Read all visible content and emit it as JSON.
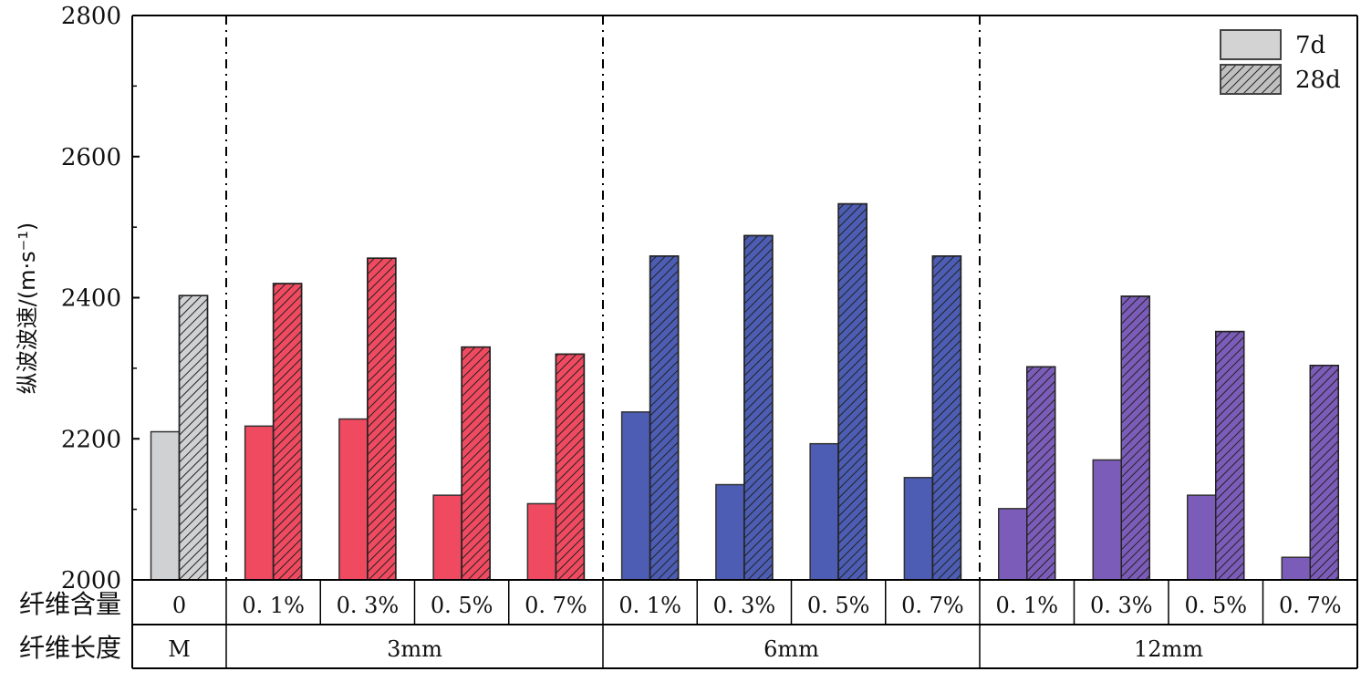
{
  "chart_data": {
    "type": "bar",
    "ylabel": "纵波波速/(m·s⁻¹)",
    "ylim": [
      2000,
      2800
    ],
    "yticks": [
      "2000",
      "2200",
      "2400",
      "2600",
      "2800"
    ],
    "categories": [
      "0",
      "0.1%",
      "0.3%",
      "0.5%",
      "0.7%",
      "0.1%",
      "0.3%",
      "0.5%",
      "0.7%",
      "0.1%",
      "0.3%",
      "0.5%",
      "0.7%"
    ],
    "category_display": [
      "0",
      "0. 1%",
      "0. 3%",
      "0. 5%",
      "0. 7%",
      "0. 1%",
      "0. 3%",
      "0. 5%",
      "0. 7%",
      "0. 1%",
      "0. 3%",
      "0. 5%",
      "0. 7%"
    ],
    "series": [
      {
        "name": "7d",
        "values": [
          2210,
          2218,
          2228,
          2120,
          2108,
          2238,
          2135,
          2193,
          2145,
          2101,
          2170,
          2120,
          2032
        ]
      },
      {
        "name": "28d",
        "values": [
          2403,
          2420,
          2456,
          2330,
          2320,
          2459,
          2488,
          2533,
          2459,
          2302,
          2402,
          2352,
          2304
        ]
      }
    ],
    "category_colors": [
      "#cfd1d3",
      "#ef4a60",
      "#ef4a60",
      "#ef4a60",
      "#ef4a60",
      "#4c5db3",
      "#4c5db3",
      "#4c5db3",
      "#4c5db3",
      "#7c5cb9",
      "#7c5cb9",
      "#7c5cb9",
      "#7c5cb9"
    ],
    "row_headers": {
      "content": "纤维含量",
      "length": "纤维长度"
    },
    "groups": [
      "M",
      "3mm",
      "6mm",
      "12mm"
    ],
    "group_spans": [
      1,
      4,
      4,
      4
    ],
    "legend": {
      "position": "top-right",
      "items": [
        "7d",
        "28d"
      ],
      "swatch_colors": [
        "#d3d3d3",
        "#c0c0c0"
      ]
    },
    "grid": false
  }
}
